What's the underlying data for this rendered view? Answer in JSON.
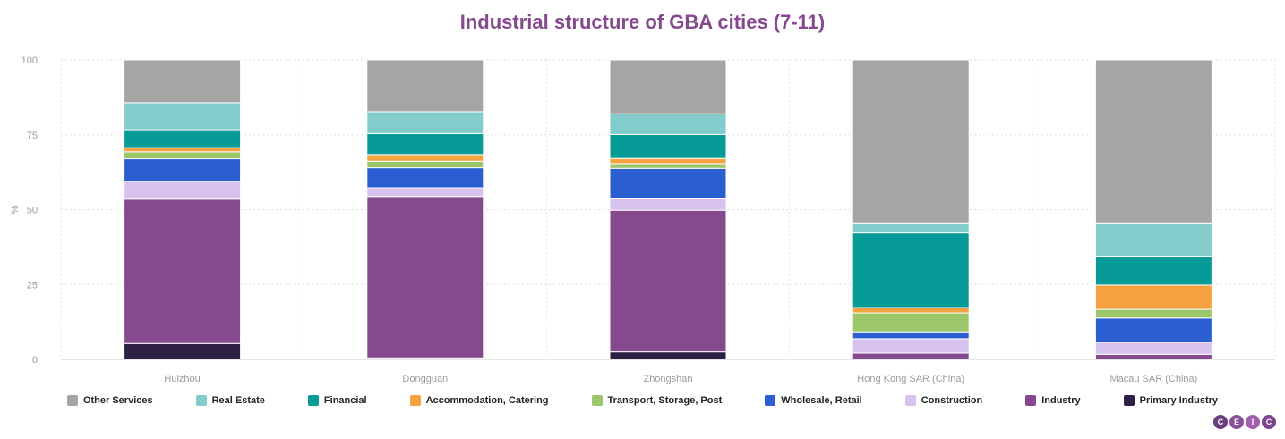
{
  "chart_data": {
    "type": "bar",
    "stacked": true,
    "title": "Industrial structure of GBA cities (7-11)",
    "ylabel": "%",
    "ylim": [
      0,
      100
    ],
    "yticks": [
      0,
      25,
      50,
      75,
      100
    ],
    "grid": true,
    "legend_position": "bottom",
    "categories": [
      "Huizhou",
      "Dongguan",
      "Zhongshan",
      "Hong Kong SAR (China)",
      "Macau SAR (China)"
    ],
    "series": [
      {
        "name": "Primary Industry",
        "color": "#2e1f45",
        "values": [
          5.3,
          0.5,
          2.5,
          0.1,
          0.0
        ]
      },
      {
        "name": "Industry",
        "color": "#854a8e",
        "values": [
          48.2,
          53.9,
          47.3,
          2.0,
          1.7
        ]
      },
      {
        "name": "Construction",
        "color": "#d8c2f0",
        "values": [
          6.0,
          2.9,
          3.8,
          4.8,
          4.0
        ]
      },
      {
        "name": "Wholesale, Retail",
        "color": "#2b5fd1",
        "values": [
          7.5,
          6.7,
          10.2,
          2.3,
          8.1
        ]
      },
      {
        "name": "Transport, Storage, Post",
        "color": "#9cc66a",
        "values": [
          2.3,
          2.2,
          1.6,
          6.3,
          2.9
        ]
      },
      {
        "name": "Accommodation, Catering",
        "color": "#f7a240",
        "values": [
          1.4,
          2.2,
          1.7,
          1.8,
          8.1
        ]
      },
      {
        "name": "Financial",
        "color": "#069b96",
        "values": [
          6.0,
          7.0,
          8.0,
          24.9,
          9.7
        ]
      },
      {
        "name": "Real Estate",
        "color": "#82cccc",
        "values": [
          9.0,
          7.3,
          6.9,
          3.4,
          11.1
        ]
      },
      {
        "name": "Other Services",
        "color": "#a6a5a4",
        "values": [
          14.3,
          17.3,
          18.0,
          54.4,
          54.4
        ]
      }
    ]
  },
  "legend_order": [
    "Other Services",
    "Real Estate",
    "Financial",
    "Accommodation, Catering",
    "Transport, Storage, Post",
    "Wholesale, Retail",
    "Construction",
    "Industry",
    "Primary Industry"
  ],
  "logo": {
    "letters": [
      "C",
      "E",
      "I",
      "C"
    ]
  }
}
